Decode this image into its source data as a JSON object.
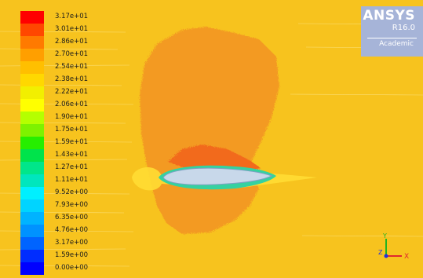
{
  "legend": {
    "labels": [
      "3.17e+01",
      "3.01e+01",
      "2.86e+01",
      "2.70e+01",
      "2.54e+01",
      "2.38e+01",
      "2.22e+01",
      "2.06e+01",
      "1.90e+01",
      "1.75e+01",
      "1.59e+01",
      "1.43e+01",
      "1.27e+01",
      "1.11e+01",
      "9.52e+00",
      "7.93e+00",
      "6.35e+00",
      "4.76e+00",
      "3.17e+00",
      "1.59e+00",
      "0.00e+00"
    ],
    "colors": [
      "#ff0000",
      "#ff4700",
      "#ff7a00",
      "#ff9f00",
      "#ffbf00",
      "#ffd800",
      "#f2ef00",
      "#ffff00",
      "#b5ff00",
      "#7ef200",
      "#26ee00",
      "#00e34b",
      "#00e68a",
      "#00e6bd",
      "#00f0ff",
      "#00d4ff",
      "#00b3ff",
      "#0092ff",
      "#0064ff",
      "#002dff",
      "#0000ff"
    ]
  },
  "brand": {
    "name": "ANSYS",
    "version": "R16.0",
    "edition": "Academic"
  },
  "triad": {
    "x_label": "X",
    "y_label": "Y",
    "z_label": "Z",
    "x_color": "#e0282e",
    "y_color": "#22b322",
    "z_color": "#2230e0"
  }
}
